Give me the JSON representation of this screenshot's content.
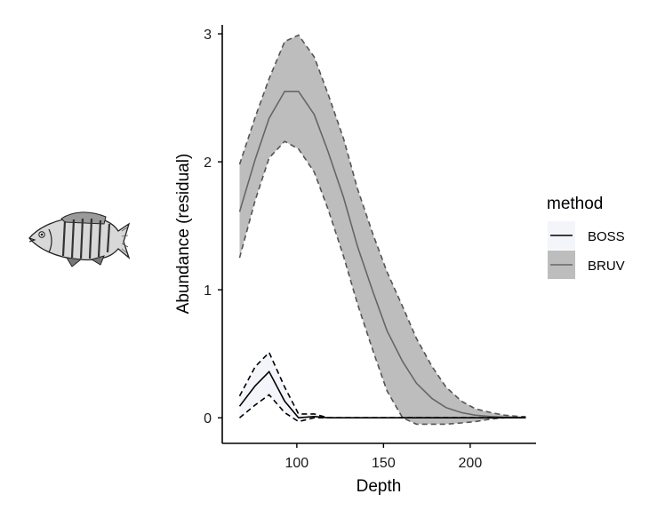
{
  "chart_data": {
    "type": "line",
    "title": "",
    "xlabel": "Depth",
    "ylabel": "Abundance (residual)",
    "xlim": [
      57,
      238
    ],
    "ylim": [
      -0.2,
      3.07
    ],
    "xticks": [
      100,
      150,
      200
    ],
    "yticks": [
      0,
      1,
      2,
      3
    ],
    "grid": false,
    "legend": {
      "title": "method",
      "position": "right"
    },
    "series": [
      {
        "name": "BOSS",
        "color": "#000000",
        "fill": "#f4f4fb",
        "x": [
          67,
          76,
          84,
          93,
          101,
          110,
          118,
          127,
          135,
          144,
          152,
          161,
          169,
          178,
          186,
          195,
          203,
          212,
          220,
          229,
          232
        ],
        "y": [
          0.09,
          0.25,
          0.36,
          0.13,
          0.0,
          0.01,
          0,
          0,
          0,
          0,
          0,
          0,
          0,
          0,
          0,
          0,
          0,
          0,
          0,
          0,
          0
        ],
        "lower": [
          0.0,
          0.1,
          0.18,
          0.04,
          -0.03,
          0.0,
          0,
          0,
          0,
          0,
          0,
          0,
          0,
          0,
          0,
          0,
          0,
          0,
          0,
          0,
          0
        ],
        "upper": [
          0.17,
          0.4,
          0.51,
          0.24,
          0.03,
          0.03,
          0,
          0,
          0,
          0,
          0,
          0,
          0,
          0,
          0,
          0,
          0,
          0,
          0,
          0,
          0
        ]
      },
      {
        "name": "BRUV",
        "color": "#666666",
        "fill": "#bdbdbd",
        "x": [
          67,
          76,
          84,
          93,
          101,
          110,
          118,
          127,
          135,
          144,
          152,
          161,
          169,
          178,
          186,
          195,
          203,
          212,
          220,
          229,
          232
        ],
        "y": [
          1.61,
          2.02,
          2.34,
          2.55,
          2.55,
          2.37,
          2.08,
          1.72,
          1.34,
          0.98,
          0.68,
          0.44,
          0.27,
          0.15,
          0.08,
          0.04,
          0.02,
          0.01,
          0.005,
          0.002,
          0.002
        ],
        "lower": [
          1.25,
          1.7,
          2.03,
          2.16,
          2.1,
          1.92,
          1.63,
          1.26,
          0.89,
          0.52,
          0.21,
          0.0,
          -0.05,
          -0.05,
          -0.05,
          -0.04,
          -0.03,
          -0.01,
          0.0,
          0.0,
          0.0
        ],
        "upper": [
          1.98,
          2.35,
          2.65,
          2.94,
          2.99,
          2.82,
          2.53,
          2.18,
          1.79,
          1.43,
          1.14,
          0.87,
          0.62,
          0.4,
          0.24,
          0.13,
          0.07,
          0.04,
          0.02,
          0.01,
          0.01
        ]
      }
    ]
  },
  "icon": "fish-illustration-icon"
}
